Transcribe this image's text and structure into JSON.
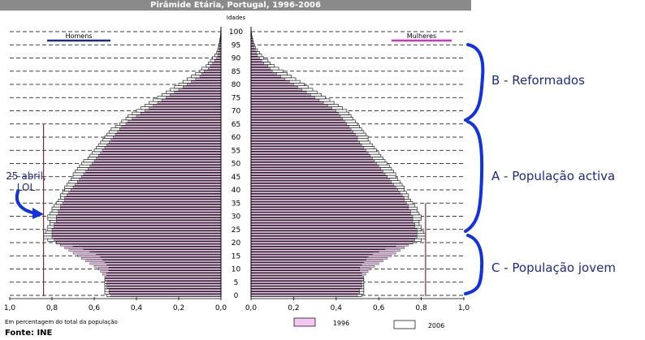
{
  "chart_data": {
    "type": "bar",
    "title": "Pirâmide Etária, Portugal, 1996-2006",
    "age_axis_label": "Idades",
    "age_ticks": [
      0,
      5,
      10,
      15,
      20,
      25,
      30,
      35,
      40,
      45,
      50,
      55,
      60,
      65,
      70,
      75,
      80,
      85,
      90,
      95,
      100
    ],
    "xlabel": "Em percentagem do total da população",
    "x_ticks_left": [
      "1,0",
      "0,8",
      "0,6",
      "0,4",
      "0,2",
      "0,0"
    ],
    "x_ticks_right": [
      "0,0",
      "0,2",
      "0,4",
      "0,6",
      "0,8",
      "1,0"
    ],
    "xlim": [
      0,
      1.0
    ],
    "left_group": "Homens",
    "right_group": "Mulheres",
    "series": [
      {
        "name": "1996",
        "color": "#f4c6f1"
      },
      {
        "name": "2006",
        "color": "#ffffff"
      }
    ],
    "ages": [
      0,
      1,
      2,
      3,
      4,
      5,
      6,
      7,
      8,
      9,
      10,
      11,
      12,
      13,
      14,
      15,
      16,
      17,
      18,
      19,
      20,
      21,
      22,
      23,
      24,
      25,
      26,
      27,
      28,
      29,
      30,
      31,
      32,
      33,
      34,
      35,
      36,
      37,
      38,
      39,
      40,
      41,
      42,
      43,
      44,
      45,
      46,
      47,
      48,
      49,
      50,
      51,
      52,
      53,
      54,
      55,
      56,
      57,
      58,
      59,
      60,
      61,
      62,
      63,
      64,
      65,
      66,
      67,
      68,
      69,
      70,
      71,
      72,
      73,
      74,
      75,
      76,
      77,
      78,
      79,
      80,
      81,
      82,
      83,
      84,
      85,
      86,
      87,
      88,
      89,
      90,
      91,
      92,
      93,
      94,
      95,
      96,
      97,
      98,
      99,
      100
    ],
    "men_1996": [
      0.52,
      0.53,
      0.53,
      0.54,
      0.54,
      0.54,
      0.55,
      0.55,
      0.56,
      0.57,
      0.58,
      0.6,
      0.62,
      0.64,
      0.66,
      0.68,
      0.7,
      0.72,
      0.74,
      0.76,
      0.78,
      0.79,
      0.8,
      0.8,
      0.8,
      0.8,
      0.79,
      0.79,
      0.78,
      0.78,
      0.78,
      0.77,
      0.77,
      0.76,
      0.76,
      0.75,
      0.74,
      0.74,
      0.73,
      0.72,
      0.71,
      0.7,
      0.69,
      0.68,
      0.67,
      0.66,
      0.65,
      0.64,
      0.63,
      0.62,
      0.61,
      0.6,
      0.59,
      0.58,
      0.57,
      0.56,
      0.55,
      0.54,
      0.53,
      0.52,
      0.51,
      0.5,
      0.49,
      0.48,
      0.47,
      0.45,
      0.44,
      0.42,
      0.4,
      0.38,
      0.36,
      0.34,
      0.32,
      0.3,
      0.28,
      0.26,
      0.24,
      0.22,
      0.2,
      0.18,
      0.16,
      0.14,
      0.12,
      0.1,
      0.09,
      0.08,
      0.06,
      0.05,
      0.04,
      0.03,
      0.02,
      0.015,
      0.012,
      0.01,
      0.008,
      0.006,
      0.004,
      0.003,
      0.002,
      0.001,
      0.001
    ],
    "men_2006": [
      0.54,
      0.55,
      0.55,
      0.55,
      0.55,
      0.55,
      0.55,
      0.54,
      0.54,
      0.53,
      0.53,
      0.53,
      0.54,
      0.55,
      0.56,
      0.57,
      0.59,
      0.62,
      0.65,
      0.7,
      0.78,
      0.82,
      0.84,
      0.84,
      0.83,
      0.82,
      0.82,
      0.81,
      0.81,
      0.82,
      0.82,
      0.81,
      0.8,
      0.8,
      0.79,
      0.78,
      0.77,
      0.76,
      0.76,
      0.75,
      0.74,
      0.74,
      0.73,
      0.72,
      0.71,
      0.7,
      0.7,
      0.69,
      0.68,
      0.67,
      0.66,
      0.65,
      0.63,
      0.62,
      0.61,
      0.6,
      0.59,
      0.58,
      0.57,
      0.56,
      0.55,
      0.54,
      0.53,
      0.52,
      0.5,
      0.48,
      0.47,
      0.45,
      0.44,
      0.42,
      0.4,
      0.38,
      0.36,
      0.34,
      0.32,
      0.3,
      0.28,
      0.26,
      0.24,
      0.22,
      0.2,
      0.18,
      0.16,
      0.14,
      0.12,
      0.1,
      0.09,
      0.07,
      0.06,
      0.05,
      0.04,
      0.03,
      0.02,
      0.016,
      0.012,
      0.01,
      0.007,
      0.005,
      0.003,
      0.002,
      0.001
    ],
    "women_1996": [
      0.5,
      0.51,
      0.51,
      0.52,
      0.52,
      0.52,
      0.53,
      0.53,
      0.54,
      0.55,
      0.56,
      0.58,
      0.6,
      0.62,
      0.64,
      0.66,
      0.68,
      0.7,
      0.72,
      0.74,
      0.76,
      0.77,
      0.78,
      0.78,
      0.78,
      0.78,
      0.77,
      0.77,
      0.76,
      0.76,
      0.76,
      0.75,
      0.75,
      0.74,
      0.74,
      0.73,
      0.72,
      0.72,
      0.71,
      0.7,
      0.69,
      0.68,
      0.67,
      0.66,
      0.65,
      0.64,
      0.63,
      0.62,
      0.61,
      0.6,
      0.59,
      0.58,
      0.57,
      0.56,
      0.55,
      0.54,
      0.53,
      0.52,
      0.51,
      0.5,
      0.5,
      0.49,
      0.48,
      0.47,
      0.46,
      0.45,
      0.44,
      0.43,
      0.42,
      0.41,
      0.4,
      0.38,
      0.36,
      0.34,
      0.32,
      0.3,
      0.28,
      0.26,
      0.24,
      0.22,
      0.2,
      0.18,
      0.16,
      0.14,
      0.12,
      0.1,
      0.09,
      0.08,
      0.06,
      0.05,
      0.04,
      0.03,
      0.025,
      0.02,
      0.015,
      0.01,
      0.008,
      0.006,
      0.004,
      0.002,
      0.001
    ],
    "women_2006": [
      0.52,
      0.53,
      0.53,
      0.53,
      0.53,
      0.53,
      0.53,
      0.52,
      0.52,
      0.51,
      0.51,
      0.51,
      0.52,
      0.53,
      0.54,
      0.55,
      0.57,
      0.6,
      0.63,
      0.68,
      0.76,
      0.8,
      0.82,
      0.82,
      0.81,
      0.8,
      0.8,
      0.79,
      0.79,
      0.8,
      0.8,
      0.79,
      0.78,
      0.78,
      0.77,
      0.76,
      0.75,
      0.74,
      0.74,
      0.73,
      0.72,
      0.72,
      0.71,
      0.7,
      0.69,
      0.68,
      0.68,
      0.67,
      0.66,
      0.65,
      0.64,
      0.63,
      0.62,
      0.61,
      0.6,
      0.59,
      0.58,
      0.57,
      0.56,
      0.55,
      0.55,
      0.54,
      0.53,
      0.52,
      0.51,
      0.5,
      0.49,
      0.48,
      0.47,
      0.46,
      0.45,
      0.43,
      0.41,
      0.39,
      0.37,
      0.35,
      0.33,
      0.31,
      0.29,
      0.27,
      0.25,
      0.23,
      0.21,
      0.19,
      0.17,
      0.15,
      0.13,
      0.11,
      0.09,
      0.08,
      0.06,
      0.05,
      0.04,
      0.03,
      0.02,
      0.015,
      0.011,
      0.008,
      0.005,
      0.003,
      0.001
    ],
    "markers": [
      {
        "series": "Homens",
        "x_value": 0.84,
        "age_range": [
          0,
          65
        ]
      },
      {
        "series": "Mulheres",
        "x_value": 0.82,
        "age_range": [
          0,
          35
        ]
      }
    ]
  },
  "annotations": {
    "reformados": "B - Reformados",
    "activa": "A - População activa",
    "jovem": "C - População jovem",
    "abril_line1": "25 abril,",
    "abril_line2": "LOL"
  },
  "legend": {
    "label_1996": "1996",
    "label_2006": "2006"
  },
  "source": "Fonte: INE",
  "colors": {
    "annotation": "#1c2a8c",
    "men_legend": "#1c2a8c",
    "women_legend": "#cc33cc",
    "fill_1996": "#f4c6f1",
    "marker": "#8b2a2a"
  }
}
